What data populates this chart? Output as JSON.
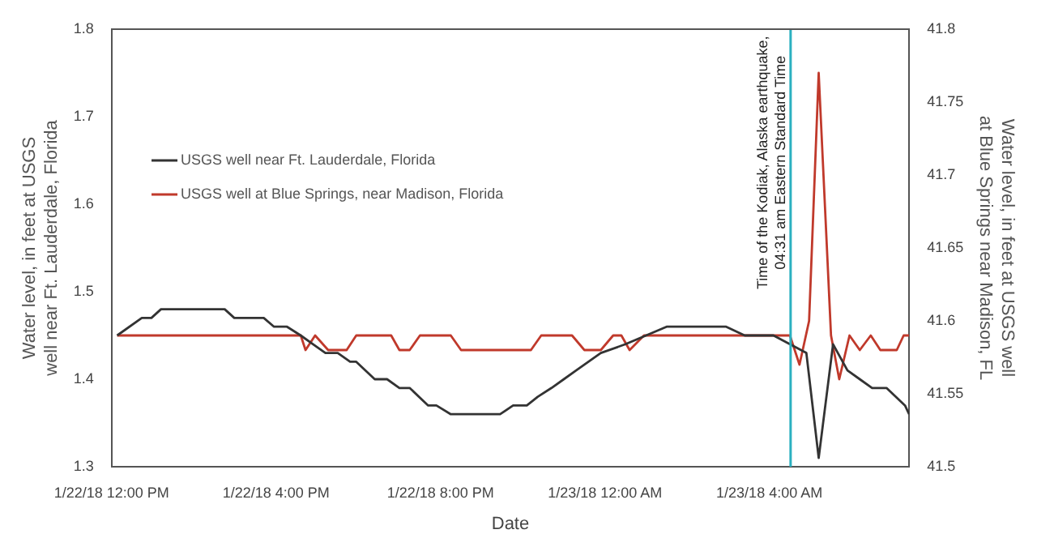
{
  "chart_data": {
    "type": "line",
    "xlabel": "Date",
    "ylabel": "Water level, in feet at USGS well near Ft. Lauderdale, Florida",
    "y2label": "Water level, in feet at USGS well at Blue Springs near Madison, FL",
    "xlim": [
      "--01-22T12:00",
      "--01-23T07:24"
    ],
    "xticks": [
      {
        "value": "--01-22T12:00",
        "label": "1/22/18 12:00 PM"
      },
      {
        "value": "--01-22T16:00",
        "label": "1/22/18 4:00 PM"
      },
      {
        "value": "--01-22T20:00",
        "label": "1/22/18 8:00 PM"
      },
      {
        "value": "--01-23T00:00",
        "label": "1/23/18 12:00 AM"
      },
      {
        "value": "--01-23T04:00",
        "label": "1/23/18 4:00 AM"
      }
    ],
    "ylim": [
      1.3,
      1.8
    ],
    "yticks": [
      1.3,
      1.4,
      1.5,
      1.6,
      1.7,
      1.8
    ],
    "y2lim": [
      41.5,
      41.8
    ],
    "y2ticks": [
      41.5,
      41.55,
      41.6,
      41.65,
      41.7,
      41.75,
      41.8
    ],
    "grid": false,
    "legend": "left",
    "marker": "none",
    "line_style": "solid",
    "series": [
      {
        "name": "USGS well near Ft. Lauderdale, Florida",
        "color": "#333333",
        "x": [
          "--01-22T12:08",
          "--01-22T12:44",
          "--01-22T12:58",
          "--01-22T13:12",
          "--01-22T14:45",
          "--01-22T14:59",
          "--01-22T15:42",
          "--01-22T15:57",
          "--01-22T16:16",
          "--01-22T16:36",
          "--01-22T16:54",
          "--01-22T17:12",
          "--01-22T17:30",
          "--01-22T17:48",
          "--01-22T17:57",
          "--01-22T18:24",
          "--01-22T18:42",
          "--01-22T19:00",
          "--01-22T19:15",
          "--01-22T19:42",
          "--01-22T19:54",
          "--01-22T20:15",
          "--01-22T21:27",
          "--01-22T21:46",
          "--01-22T22:06",
          "--01-22T22:22",
          "--01-22T22:42",
          "--01-22T23:00",
          "--01-22T23:18",
          "--01-22T23:36",
          "--01-22T23:54",
          "--01-23T00:30",
          "--01-23T01:00",
          "--01-23T01:30",
          "--01-23T02:57",
          "--01-23T03:24",
          "--01-23T04:06",
          "--01-23T04:30",
          "--01-23T04:54",
          "--01-23T05:12",
          "--01-23T05:33",
          "--01-23T05:54",
          "--01-23T06:12",
          "--01-23T06:30",
          "--01-23T06:51",
          "--01-23T07:18",
          "--01-23T07:24"
        ],
        "values": [
          1.45,
          1.47,
          1.47,
          1.48,
          1.48,
          1.47,
          1.47,
          1.46,
          1.46,
          1.45,
          1.44,
          1.43,
          1.43,
          1.42,
          1.42,
          1.4,
          1.4,
          1.39,
          1.39,
          1.37,
          1.37,
          1.36,
          1.36,
          1.37,
          1.37,
          1.38,
          1.39,
          1.4,
          1.41,
          1.42,
          1.43,
          1.44,
          1.45,
          1.46,
          1.46,
          1.45,
          1.45,
          1.44,
          1.43,
          1.31,
          1.44,
          1.41,
          1.4,
          1.39,
          1.39,
          1.37,
          1.36
        ]
      },
      {
        "name": "USGS well at Blue Springs, near Madison, Florida",
        "color": "#c0392b",
        "axis": "y2",
        "x": [
          "--01-22T12:08",
          "--01-22T16:36",
          "--01-22T16:43",
          "--01-22T16:57",
          "--01-22T17:16",
          "--01-22T17:43",
          "--01-22T17:57",
          "--01-22T18:48",
          "--01-22T19:00",
          "--01-22T19:15",
          "--01-22T19:30",
          "--01-22T20:15",
          "--01-22T20:30",
          "--01-22T22:12",
          "--01-22T22:27",
          "--01-22T23:12",
          "--01-22T23:30",
          "--01-22T23:54",
          "--01-23T00:12",
          "--01-23T00:24",
          "--01-23T00:36",
          "--01-23T00:57",
          "--01-23T04:30",
          "--01-23T04:44",
          "--01-23T04:58",
          "--01-23T05:12",
          "--01-23T05:30",
          "--01-23T05:42",
          "--01-23T05:57",
          "--01-23T06:12",
          "--01-23T06:28",
          "--01-23T06:42",
          "--01-23T07:06",
          "--01-23T07:16",
          "--01-23T07:24"
        ],
        "values": [
          41.59,
          41.59,
          41.58,
          41.59,
          41.58,
          41.58,
          41.59,
          41.59,
          41.58,
          41.58,
          41.59,
          41.59,
          41.58,
          41.58,
          41.59,
          41.59,
          41.58,
          41.58,
          41.59,
          41.59,
          41.58,
          41.59,
          41.59,
          41.57,
          41.6,
          41.77,
          41.59,
          41.56,
          41.59,
          41.58,
          41.59,
          41.58,
          41.58,
          41.59,
          41.59
        ]
      }
    ],
    "ref_lines": [
      {
        "axis": "x",
        "value": "--01-23T04:31",
        "label": "Time of the Kodiak, Alaska earthquake, 04:31 am Eastern Standard Time",
        "color": "#2ab0c0"
      }
    ]
  }
}
